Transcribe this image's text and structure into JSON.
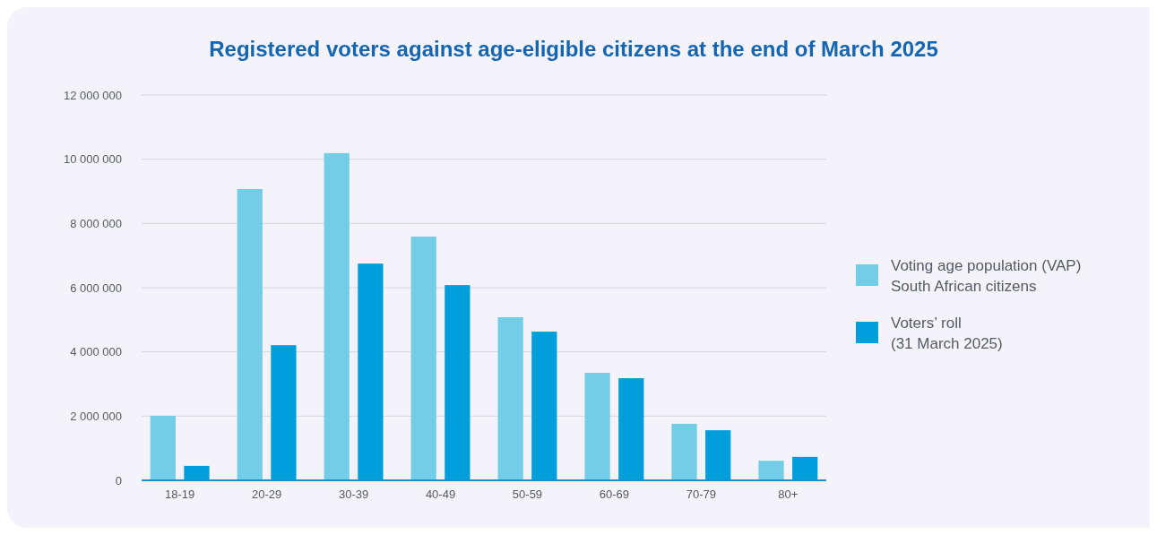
{
  "chart_data": {
    "type": "bar",
    "title": "Registered voters against age-eligible citizens at the end of March 2025",
    "categories": [
      "18-19",
      "20-29",
      "30-39",
      "40-49",
      "50-59",
      "60-69",
      "70-79",
      "80+"
    ],
    "series": [
      {
        "name": "Voting age population (VAP)\nSouth African citizens",
        "color": "#74cde6",
        "values": [
          2010000,
          9070000,
          10190000,
          7590000,
          5080000,
          3350000,
          1760000,
          610000
        ]
      },
      {
        "name": "Voters’ roll\n(31 March 2025)",
        "color": "#009fdb",
        "values": [
          450000,
          4210000,
          6750000,
          6080000,
          4630000,
          3180000,
          1560000,
          730000
        ]
      }
    ],
    "ylim": [
      0,
      12000000
    ],
    "yticks": [
      0,
      {
        "value": 2000000,
        "label": "2 000 000"
      },
      {
        "value": 4000000,
        "label": "4 000 000"
      },
      {
        "value": 6000000,
        "label": "6 000 000"
      },
      {
        "value": 8000000,
        "label": "8 000 000"
      },
      {
        "value": 10000000,
        "label": "10 000 000"
      },
      {
        "value": 12000000,
        "label": "12 000 000"
      }
    ],
    "grid": "y",
    "legend": "right"
  }
}
